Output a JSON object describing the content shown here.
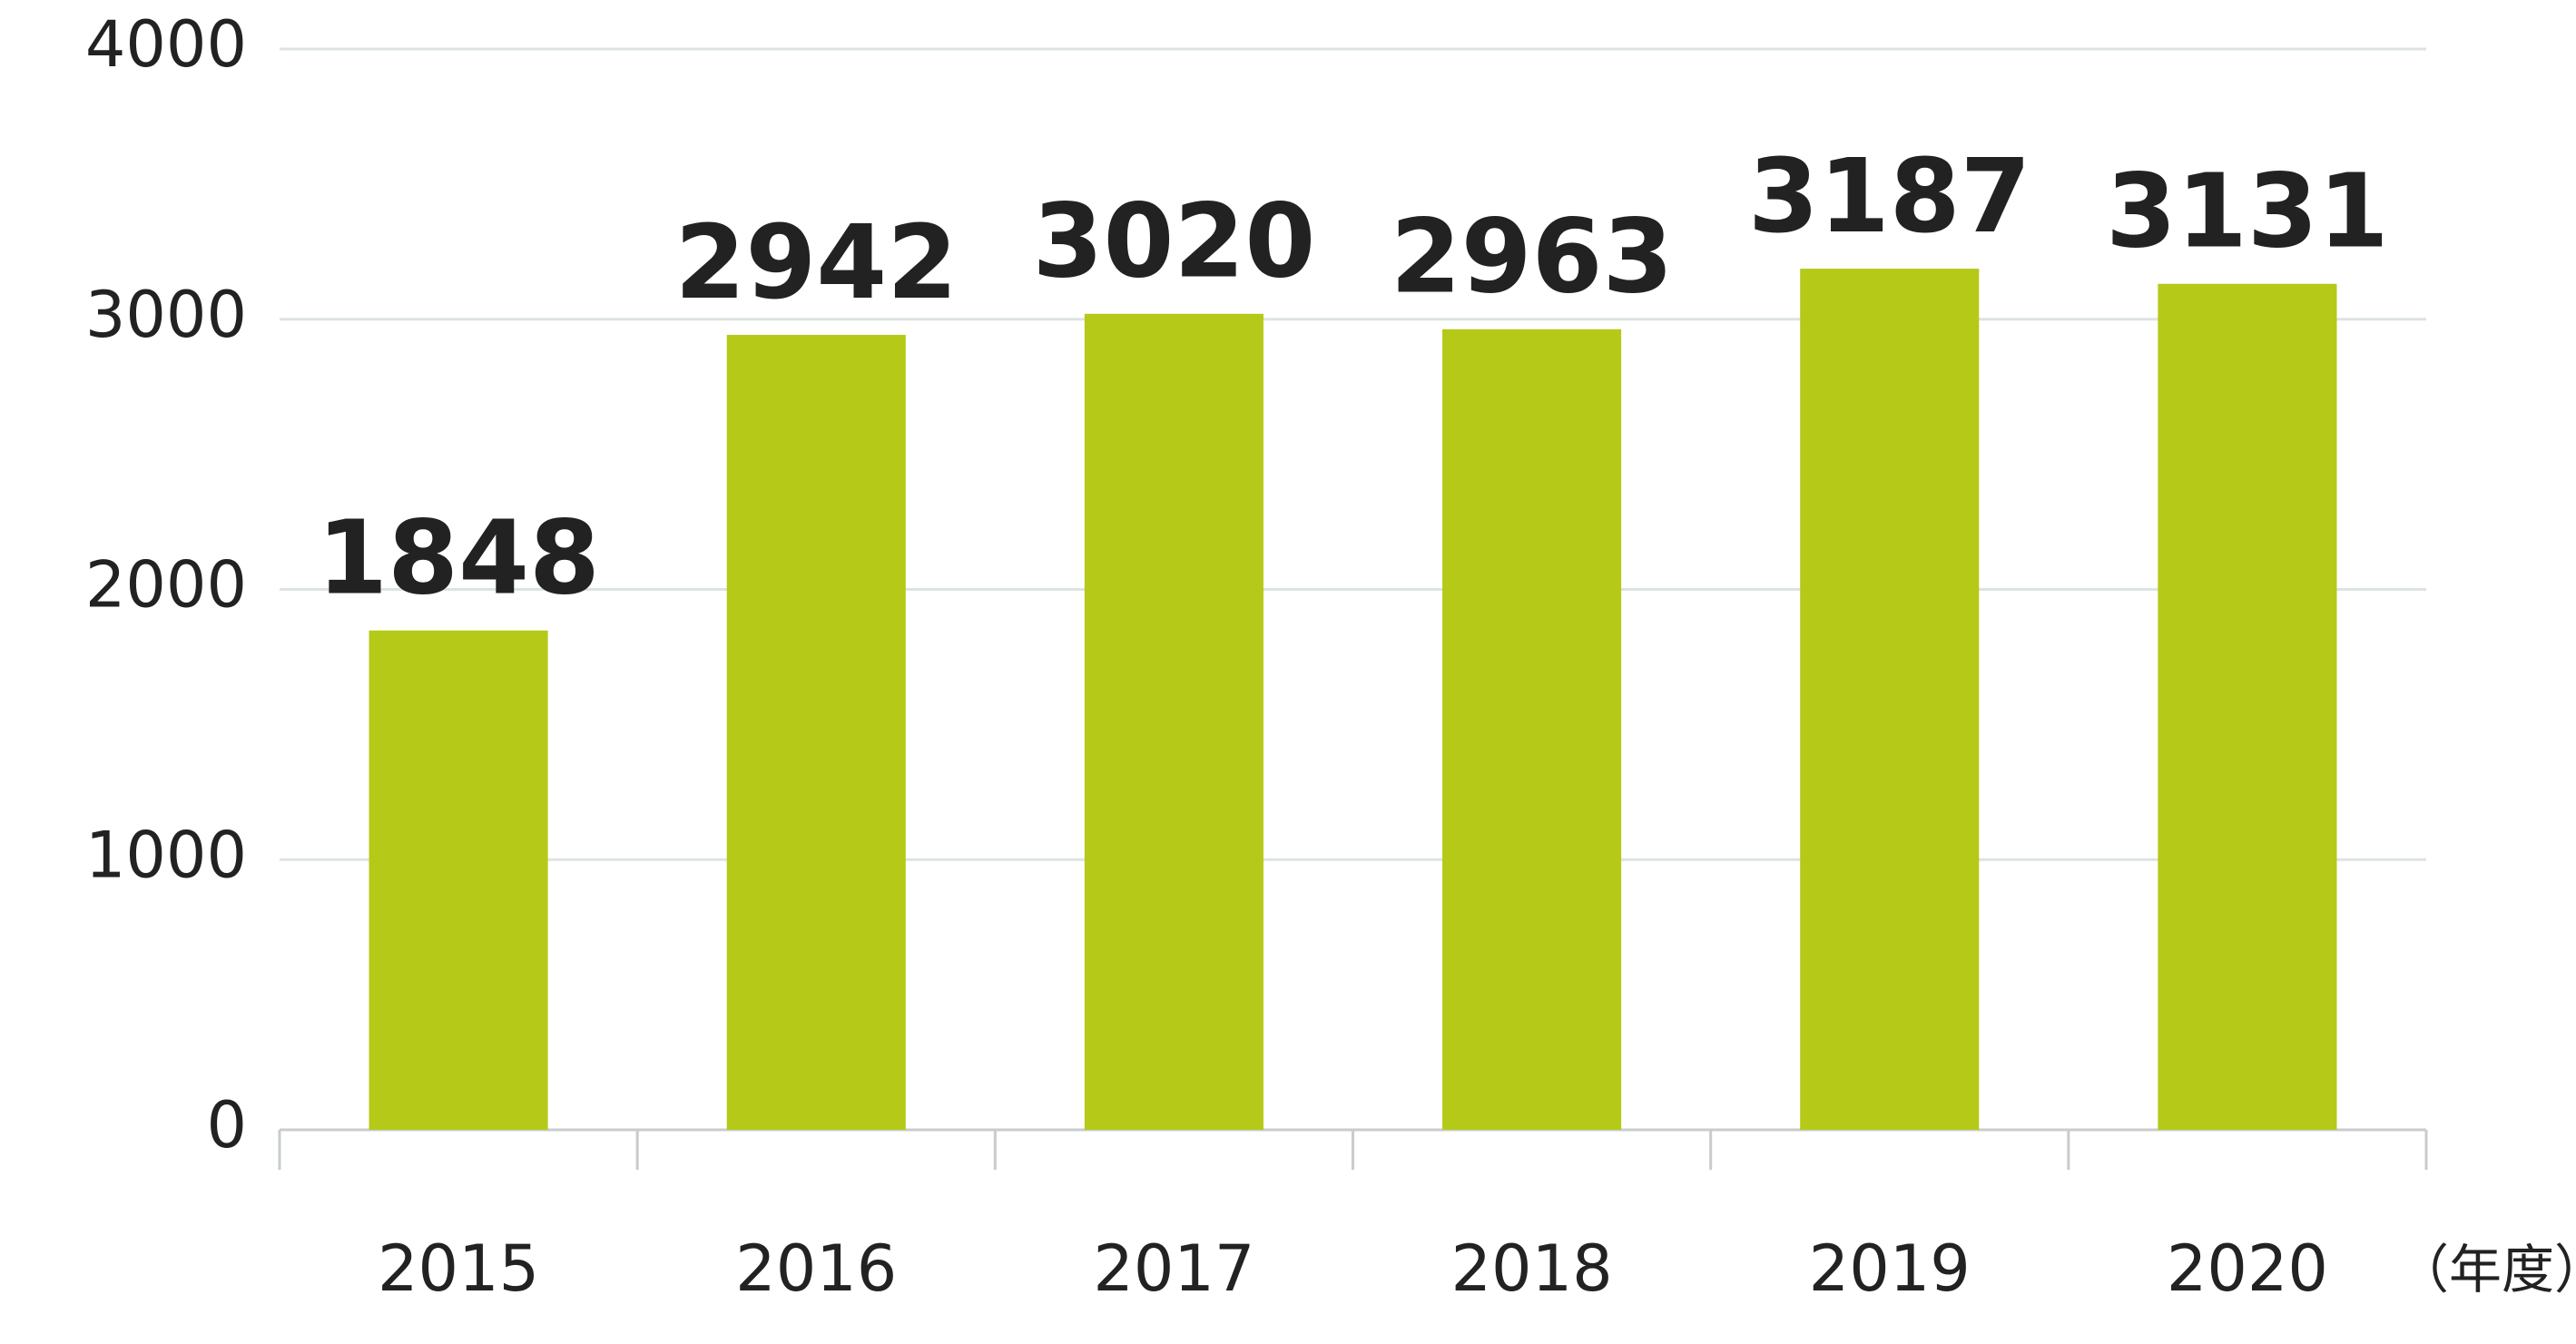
{
  "chart_data": {
    "type": "bar",
    "categories": [
      "2015",
      "2016",
      "2017",
      "2018",
      "2019",
      "2020"
    ],
    "values": [
      1848,
      2942,
      3020,
      2963,
      3187,
      3131
    ],
    "color": "#b5c918",
    "ylim": [
      0,
      4000
    ],
    "yticks": [
      0,
      1000,
      2000,
      3000,
      4000
    ],
    "grid": true,
    "xlabel": "（年度）"
  }
}
